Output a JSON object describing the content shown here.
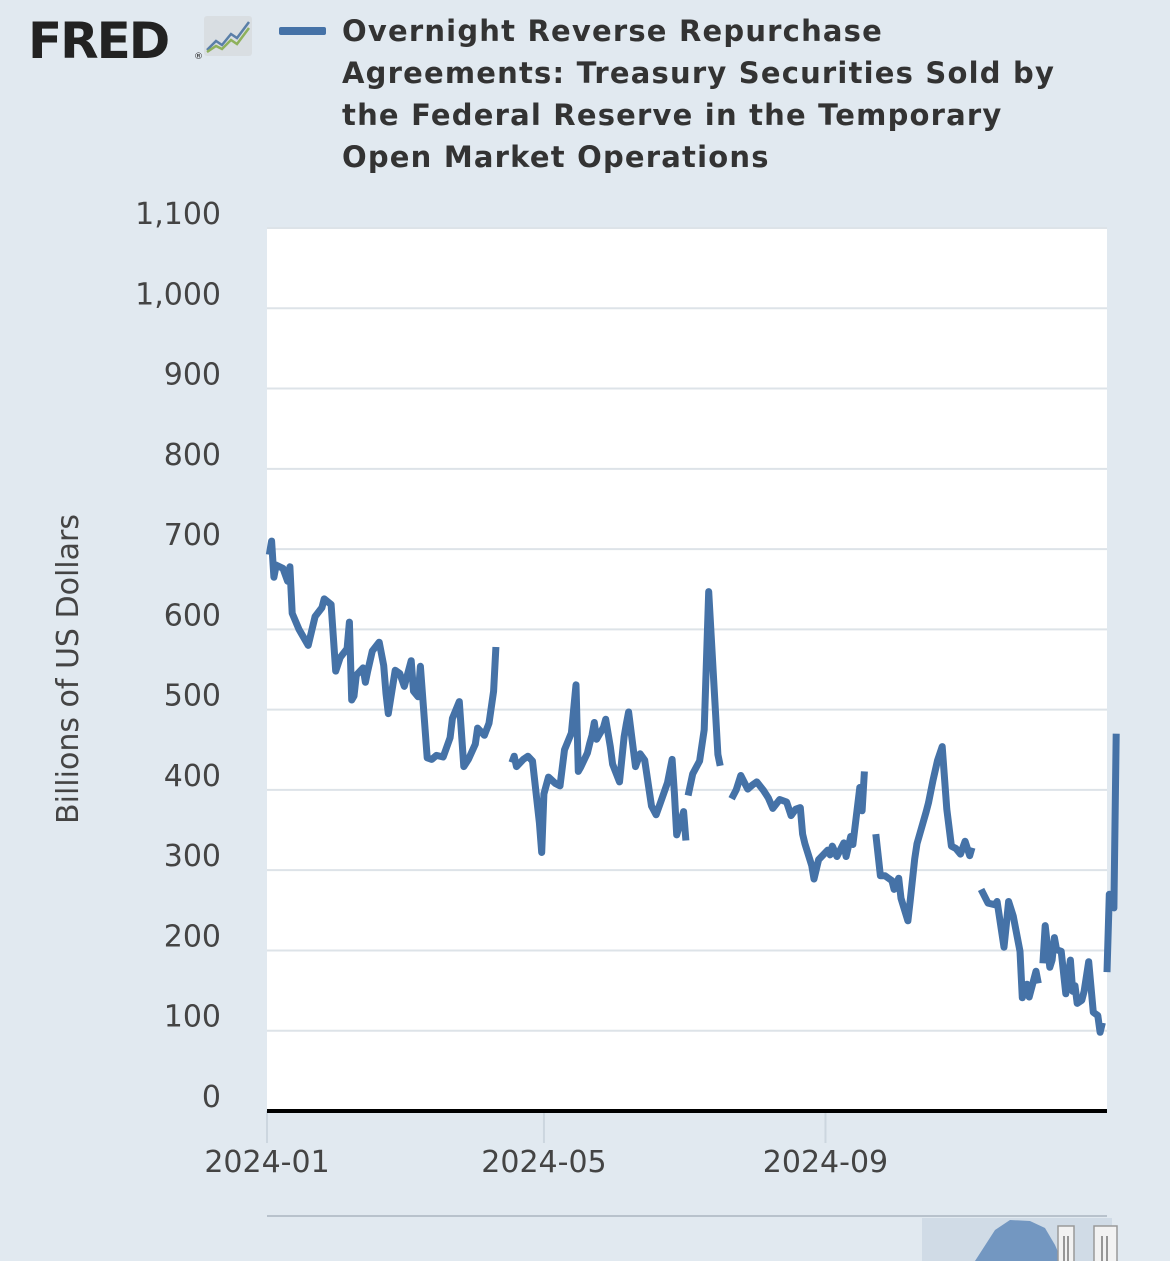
{
  "brand": {
    "logo_text": "FRED",
    "registered": "®"
  },
  "chart_data": {
    "type": "line",
    "title": "Overnight Reverse Repurchase Agreements: Treasury Securities Sold by the Federal Reserve in the Temporary Open Market Operations",
    "title_lines": [
      "Overnight Reverse Repurchase",
      "Agreements: Treasury Securities Sold by",
      "the Federal Reserve in the Temporary",
      "Open Market Operations"
    ],
    "ylabel": "Billions of US Dollars",
    "xlabel": "",
    "x_axis": {
      "start": "2024-01-01",
      "end": "2025-01-02",
      "tick_labels": [
        "2024-01",
        "2024-05",
        "2024-09"
      ]
    },
    "y_axis": {
      "min": 0,
      "max": 1100,
      "tick_labels": [
        "0",
        "100",
        "200",
        "300",
        "400",
        "500",
        "600",
        "700",
        "800",
        "900",
        "1,000",
        "1,100"
      ]
    },
    "grid": true,
    "legend": "top",
    "colors": {
      "series": "#4572a7",
      "plot_bg": "#ffffff",
      "page_bg": "#e1e9f0",
      "gridline": "#dde3e8",
      "axis_line": "#000000"
    },
    "series": [
      {
        "name": "Overnight Reverse Repurchase Agreements: Treasury Securities Sold by the Federal Reserve in the Temporary Open Market Operations",
        "segments": [
          [
            [
              "2024-01-02",
              693
            ],
            [
              "2024-01-03",
              710
            ],
            [
              "2024-01-04",
              665
            ],
            [
              "2024-01-05",
              680
            ],
            [
              "2024-01-08",
              676
            ],
            [
              "2024-01-09",
              668
            ],
            [
              "2024-01-10",
              660
            ],
            [
              "2024-01-11",
              678
            ],
            [
              "2024-01-12",
              620
            ],
            [
              "2024-01-15",
              600
            ],
            [
              "2024-01-19",
              580
            ],
            [
              "2024-01-22",
              616
            ],
            [
              "2024-01-25",
              627
            ],
            [
              "2024-01-26",
              638
            ],
            [
              "2024-01-29",
              631
            ],
            [
              "2024-01-31",
              548
            ],
            [
              "2024-02-02",
              565
            ],
            [
              "2024-02-05",
              576
            ],
            [
              "2024-02-06",
              609
            ],
            [
              "2024-02-07",
              512
            ],
            [
              "2024-02-08",
              517
            ],
            [
              "2024-02-09",
              543
            ],
            [
              "2024-02-12",
              552
            ],
            [
              "2024-02-13",
              534
            ],
            [
              "2024-02-14",
              548
            ],
            [
              "2024-02-16",
              573
            ],
            [
              "2024-02-19",
              584
            ],
            [
              "2024-02-21",
              555
            ],
            [
              "2024-02-22",
              520
            ],
            [
              "2024-02-23",
              495
            ],
            [
              "2024-02-26",
              549
            ],
            [
              "2024-02-28",
              545
            ],
            [
              "2024-03-01",
              529
            ],
            [
              "2024-03-04",
              561
            ],
            [
              "2024-03-05",
              523
            ],
            [
              "2024-03-07",
              516
            ],
            [
              "2024-03-08",
              554
            ],
            [
              "2024-03-11",
              440
            ],
            [
              "2024-03-13",
              438
            ],
            [
              "2024-03-15",
              443
            ],
            [
              "2024-03-18",
              441
            ],
            [
              "2024-03-21",
              465
            ],
            [
              "2024-03-22",
              489
            ],
            [
              "2024-03-25",
              510
            ],
            [
              "2024-03-27",
              429
            ],
            [
              "2024-03-29",
              438
            ],
            [
              "2024-04-01",
              457
            ],
            [
              "2024-04-02",
              477
            ],
            [
              "2024-04-05",
              468
            ],
            [
              "2024-04-07",
              483
            ],
            [
              "2024-04-09",
              523
            ],
            [
              "2024-04-10",
              578
            ]
          ],
          [
            [
              "2024-04-17",
              434
            ],
            [
              "2024-04-18",
              442
            ],
            [
              "2024-04-19",
              429
            ],
            [
              "2024-04-22",
              438
            ],
            [
              "2024-04-24",
              442
            ],
            [
              "2024-04-26",
              436
            ],
            [
              "2024-04-29",
              359
            ],
            [
              "2024-04-30",
              322
            ],
            [
              "2024-05-01",
              395
            ],
            [
              "2024-05-03",
              416
            ],
            [
              "2024-05-06",
              408
            ],
            [
              "2024-05-08",
              405
            ],
            [
              "2024-05-10",
              450
            ],
            [
              "2024-05-13",
              471
            ],
            [
              "2024-05-15",
              531
            ],
            [
              "2024-05-16",
              423
            ],
            [
              "2024-05-17",
              428
            ],
            [
              "2024-05-20",
              446
            ],
            [
              "2024-05-21",
              458
            ],
            [
              "2024-05-22",
              468
            ],
            [
              "2024-05-23",
              484
            ],
            [
              "2024-05-24",
              463
            ],
            [
              "2024-05-27",
              478
            ],
            [
              "2024-05-28",
              488
            ],
            [
              "2024-05-30",
              454
            ],
            [
              "2024-05-31",
              432
            ],
            [
              "2024-06-03",
              410
            ],
            [
              "2024-06-05",
              466
            ],
            [
              "2024-06-06",
              482
            ],
            [
              "2024-06-07",
              497
            ],
            [
              "2024-06-10",
              429
            ],
            [
              "2024-06-12",
              445
            ],
            [
              "2024-06-14",
              437
            ],
            [
              "2024-06-17",
              380
            ],
            [
              "2024-06-19",
              369
            ],
            [
              "2024-06-21",
              385
            ],
            [
              "2024-06-24",
              409
            ],
            [
              "2024-06-26",
              438
            ],
            [
              "2024-06-27",
              396
            ],
            [
              "2024-06-28",
              344
            ],
            [
              "2024-07-01",
              373
            ],
            [
              "2024-07-02",
              337
            ]
          ],
          [
            [
              "2024-07-03",
              393
            ],
            [
              "2024-07-05",
              420
            ],
            [
              "2024-07-08",
              436
            ],
            [
              "2024-07-10",
              475
            ],
            [
              "2024-07-12",
              647
            ],
            [
              "2024-07-14",
              545
            ],
            [
              "2024-07-16",
              444
            ],
            [
              "2024-07-17",
              430
            ]
          ],
          [
            [
              "2024-07-22",
              389
            ],
            [
              "2024-07-24",
              400
            ],
            [
              "2024-07-26",
              418
            ],
            [
              "2024-07-29",
              401
            ],
            [
              "2024-07-31",
              406
            ],
            [
              "2024-08-02",
              410
            ],
            [
              "2024-08-05",
              399
            ],
            [
              "2024-08-07",
              390
            ],
            [
              "2024-08-09",
              377
            ],
            [
              "2024-08-12",
              388
            ],
            [
              "2024-08-15",
              385
            ],
            [
              "2024-08-17",
              368
            ],
            [
              "2024-08-19",
              376
            ],
            [
              "2024-08-21",
              378
            ],
            [
              "2024-08-22",
              345
            ],
            [
              "2024-08-23",
              333
            ],
            [
              "2024-08-26",
              306
            ],
            [
              "2024-08-27",
              289
            ],
            [
              "2024-08-29",
              313
            ],
            [
              "2024-09-02",
              325
            ],
            [
              "2024-09-03",
              319
            ],
            [
              "2024-09-04",
              330
            ],
            [
              "2024-09-06",
              317
            ],
            [
              "2024-09-09",
              334
            ],
            [
              "2024-09-10",
              317
            ],
            [
              "2024-09-12",
              342
            ],
            [
              "2024-09-13",
              332
            ],
            [
              "2024-09-16",
              403
            ],
            [
              "2024-09-17",
              374
            ],
            [
              "2024-09-18",
              423
            ]
          ],
          [
            [
              "2024-09-23",
              345
            ],
            [
              "2024-09-25",
              293
            ],
            [
              "2024-09-27",
              293
            ],
            [
              "2024-09-30",
              287
            ],
            [
              "2024-10-01",
              276
            ],
            [
              "2024-10-03",
              290
            ],
            [
              "2024-10-04",
              265
            ],
            [
              "2024-10-07",
              237
            ],
            [
              "2024-10-08",
              262
            ],
            [
              "2024-10-10",
              314
            ],
            [
              "2024-10-11",
              333
            ],
            [
              "2024-10-15",
              373
            ],
            [
              "2024-10-16",
              384
            ],
            [
              "2024-10-18",
              412
            ],
            [
              "2024-10-20",
              437
            ],
            [
              "2024-10-22",
              454
            ],
            [
              "2024-10-24",
              376
            ],
            [
              "2024-10-26",
              330
            ],
            [
              "2024-10-28",
              327
            ],
            [
              "2024-10-30",
              320
            ],
            [
              "2024-11-01",
              336
            ],
            [
              "2024-11-03",
              318
            ],
            [
              "2024-11-04",
              328
            ]
          ],
          [
            [
              "2024-11-08",
              276
            ],
            [
              "2024-11-11",
              259
            ],
            [
              "2024-11-14",
              257
            ],
            [
              "2024-11-15",
              261
            ],
            [
              "2024-11-18",
              204
            ],
            [
              "2024-11-19",
              232
            ],
            [
              "2024-11-20",
              261
            ],
            [
              "2024-11-22",
              243
            ],
            [
              "2024-11-25",
              199
            ],
            [
              "2024-11-26",
              141
            ],
            [
              "2024-11-28",
              158
            ],
            [
              "2024-11-29",
              142
            ],
            [
              "2024-12-02",
              174
            ],
            [
              "2024-12-03",
              159
            ]
          ],
          [
            [
              "2024-12-05",
              184
            ],
            [
              "2024-12-06",
              231
            ],
            [
              "2024-12-08",
              179
            ],
            [
              "2024-12-09",
              188
            ],
            [
              "2024-12-10",
              216
            ],
            [
              "2024-12-11",
              201
            ],
            [
              "2024-12-13",
              199
            ],
            [
              "2024-12-15",
              146
            ],
            [
              "2024-12-17",
              188
            ],
            [
              "2024-12-18",
              149
            ],
            [
              "2024-12-19",
              156
            ],
            [
              "2024-12-20",
              134
            ],
            [
              "2024-12-22",
              138
            ],
            [
              "2024-12-23",
              149
            ],
            [
              "2024-12-25",
              186
            ],
            [
              "2024-12-27",
              123
            ],
            [
              "2024-12-29",
              119
            ],
            [
              "2024-12-30",
              98
            ],
            [
              "2024-12-31",
              110
            ]
          ],
          [
            [
              "2025-01-02",
              173
            ],
            [
              "2025-01-03",
              270
            ],
            [
              "2025-01-05",
              253
            ],
            [
              "2025-01-06",
              470
            ]
          ]
        ]
      }
    ]
  }
}
